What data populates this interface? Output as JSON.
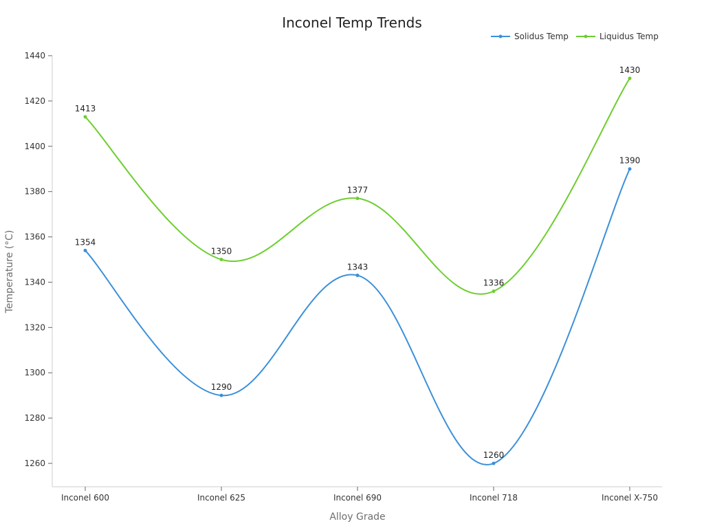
{
  "chart_data": {
    "type": "line",
    "title": "Inconel Temp Trends",
    "xlabel": "Alloy Grade",
    "ylabel": "Temperature (°C)",
    "categories": [
      "Inconel 600",
      "Inconel 625",
      "Inconel 690",
      "Inconel 718",
      "Inconel X-750"
    ],
    "ylim": [
      1250,
      1445
    ],
    "yticks": [
      1260,
      1280,
      1300,
      1320,
      1340,
      1360,
      1380,
      1400,
      1420,
      1440
    ],
    "grid": false,
    "legend_position": "top-right",
    "series": [
      {
        "name": "Solidus Temp",
        "color": "#3a8fd9",
        "values": [
          1354,
          1290,
          1343,
          1260,
          1390
        ]
      },
      {
        "name": "Liquidus Temp",
        "color": "#6cce2e",
        "values": [
          1413,
          1350,
          1377,
          1336,
          1430
        ]
      }
    ]
  }
}
